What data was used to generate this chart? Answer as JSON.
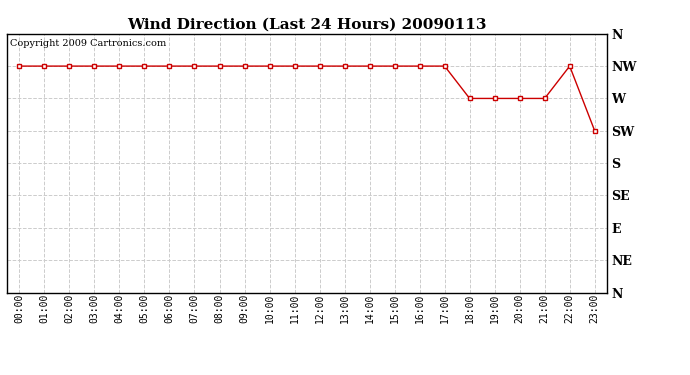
{
  "title": "Wind Direction (Last 24 Hours) 20090113",
  "copyright_text": "Copyright 2009 Cartronics.com",
  "line_color": "#cc0000",
  "marker_color": "#cc0000",
  "bg_color": "#ffffff",
  "grid_color": "#cccccc",
  "x_labels": [
    "00:00",
    "01:00",
    "02:00",
    "03:00",
    "04:00",
    "05:00",
    "06:00",
    "07:00",
    "08:00",
    "09:00",
    "10:00",
    "11:00",
    "12:00",
    "13:00",
    "14:00",
    "15:00",
    "16:00",
    "17:00",
    "18:00",
    "19:00",
    "20:00",
    "21:00",
    "22:00",
    "23:00"
  ],
  "y_labels": [
    "N",
    "NW",
    "W",
    "SW",
    "S",
    "SE",
    "E",
    "NE",
    "N"
  ],
  "y_values": [
    8,
    7,
    6,
    5,
    4,
    3,
    2,
    1,
    0
  ],
  "data_y": [
    7,
    7,
    7,
    7,
    7,
    7,
    7,
    7,
    7,
    7,
    7,
    7,
    7,
    7,
    7,
    7,
    7,
    7,
    6,
    6,
    6,
    6,
    7,
    5
  ],
  "title_fontsize": 11,
  "ylabel_fontsize": 9,
  "xlabel_fontsize": 7,
  "copyright_fontsize": 7
}
